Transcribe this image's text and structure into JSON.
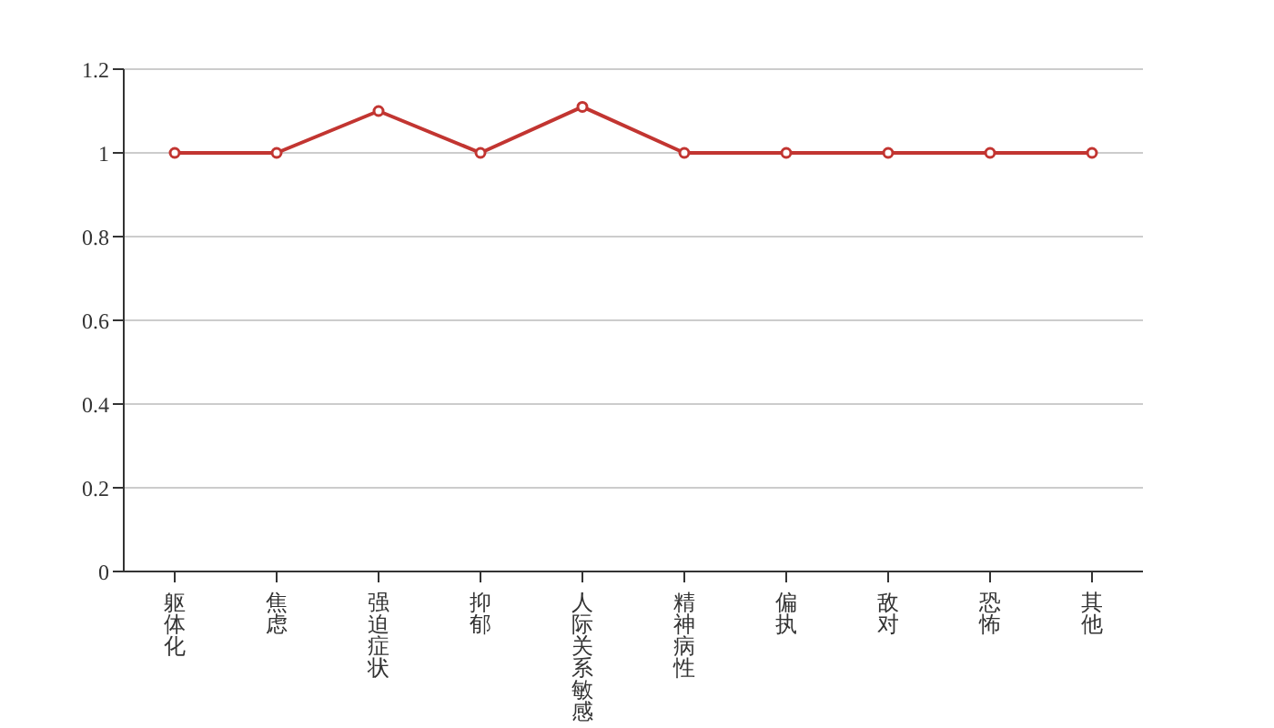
{
  "chart_data": {
    "type": "line",
    "categories": [
      "躯体化",
      "焦虑",
      "强迫症状",
      "抑郁",
      "人际关系敏感",
      "精神病性",
      "偏执",
      "敌对",
      "恐怖",
      "其他"
    ],
    "series": [
      {
        "color": "#c23531",
        "values": [
          1,
          1,
          1.1,
          1,
          1.11,
          1,
          1,
          1,
          1,
          1
        ]
      }
    ],
    "ylim": [
      0,
      1.2
    ],
    "yticks": [
      0,
      0.2,
      0.4,
      0.6,
      0.8,
      1,
      1.2
    ],
    "grid": "y",
    "marker": "circle",
    "line_style": "solid"
  }
}
